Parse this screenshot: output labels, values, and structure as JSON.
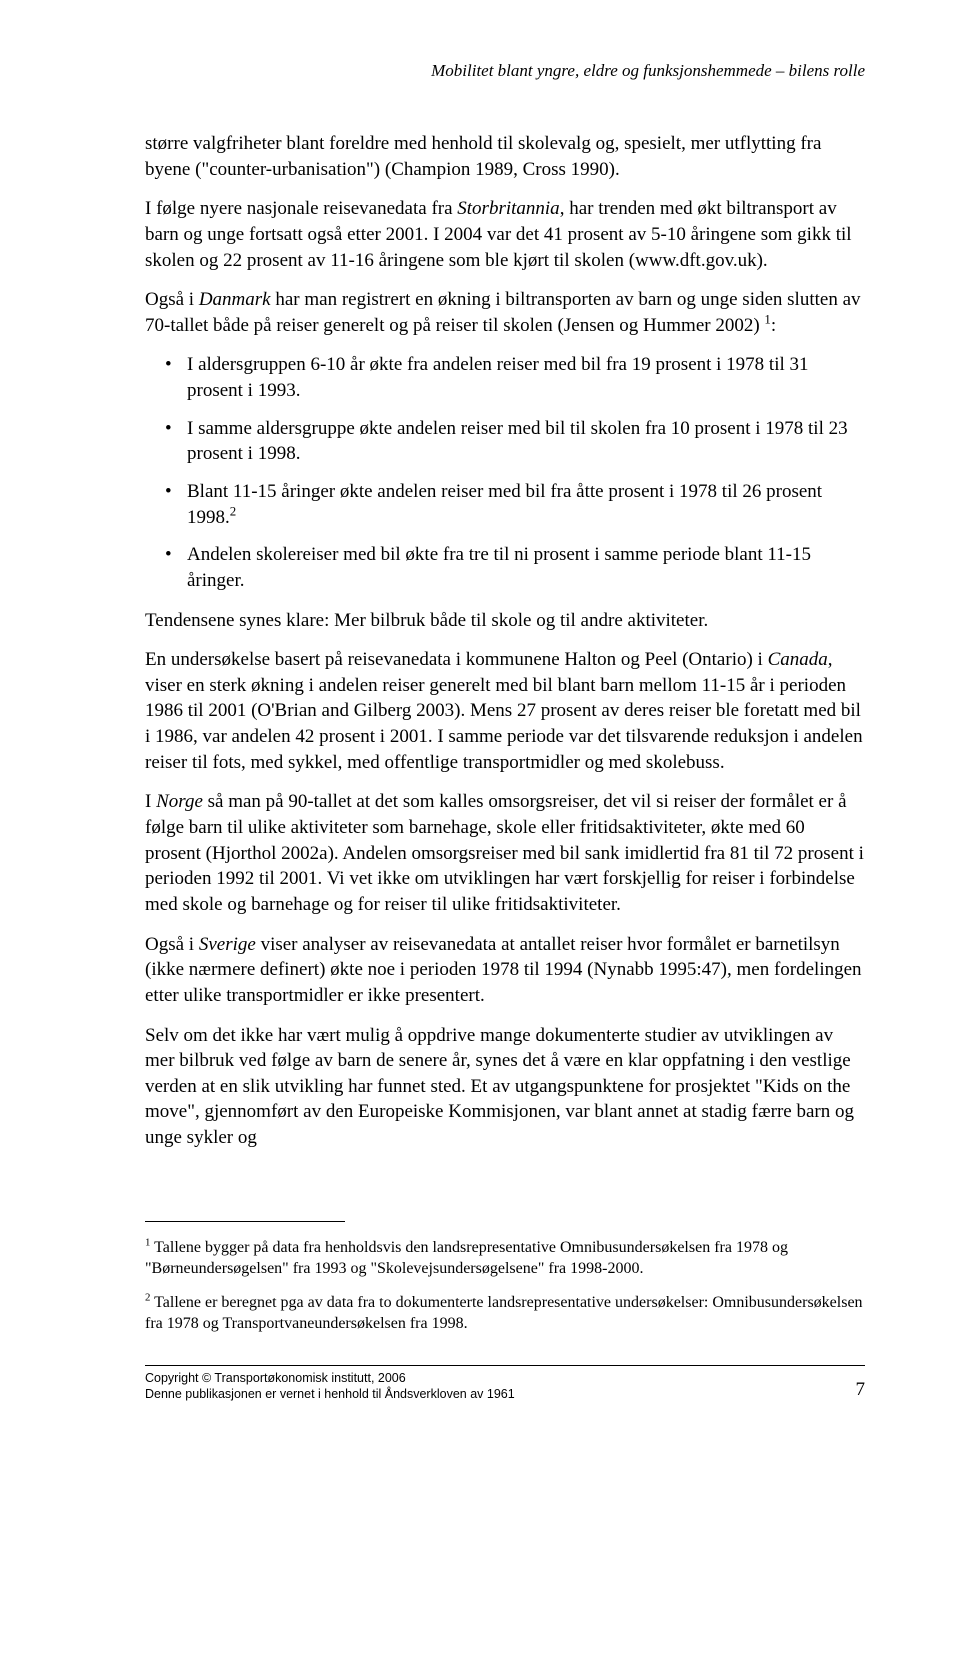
{
  "running_header": "Mobilitet blant yngre, eldre og funksjonshemmede – bilens rolle",
  "p1": "større valgfriheter blant foreldre med henhold til skolevalg og, spesielt, mer utflytting fra byene (\"counter-urbanisation\") (Champion 1989, Cross 1990).",
  "p2_a": "I følge nyere nasjonale reisevanedata fra ",
  "p2_i1": "Storbritannia",
  "p2_b": ", har trenden med økt biltransport av barn og unge fortsatt også etter 2001. I 2004 var det 41 prosent av 5-10 åringene som gikk til skolen og 22 prosent av 11-16 åringene som ble kjørt til skolen (www.dft.gov.uk).",
  "p3_a": "Også i ",
  "p3_i1": "Danmark",
  "p3_b": " har man registrert en økning i biltransporten av barn og unge siden slutten av 70-tallet både på reiser generelt og på reiser til skolen (Jensen og Hummer 2002)",
  "p3_sup": "1",
  "p3_c": ":",
  "bullets": {
    "b1": "I aldersgruppen 6-10 år økte fra andelen reiser med bil fra 19 prosent i 1978 til 31 prosent i 1993.",
    "b2": "I samme aldersgruppe økte andelen reiser med bil til skolen fra 10 prosent i 1978 til 23 prosent i 1998.",
    "b3_a": "Blant 11-15 åringer økte andelen reiser med bil fra åtte prosent i 1978 til 26 prosent 1998.",
    "b3_sup": "2",
    "b4": "Andelen skolereiser med bil økte fra tre til ni prosent i samme periode blant 11-15 åringer."
  },
  "p4": "Tendensene synes klare: Mer bilbruk både til skole og til andre aktiviteter.",
  "p5_a": "En undersøkelse basert på reisevanedata i kommunene Halton og Peel (Ontario) i ",
  "p5_i1": "Canada",
  "p5_b": ", viser en sterk økning i andelen reiser generelt med bil blant barn mellom 11-15 år i perioden 1986 til 2001 (O'Brian and Gilberg 2003). Mens 27 prosent av deres reiser ble foretatt med bil i 1986, var andelen 42 prosent i 2001. I samme periode var det tilsvarende reduksjon i andelen reiser til fots, med sykkel, med offentlige transportmidler og med skolebuss.",
  "p6_a": "I ",
  "p6_i1": "Norge",
  "p6_b": " så man på 90-tallet at det som kalles omsorgsreiser, det vil si reiser der formålet er å følge barn til ulike aktiviteter som barnehage, skole eller fritidsaktiviteter, økte med 60 prosent (Hjorthol 2002a). Andelen omsorgsreiser med bil sank imidlertid fra 81 til 72 prosent i perioden 1992 til 2001. Vi vet ikke om utviklingen har vært forskjellig for reiser i forbindelse med skole og barnehage og for reiser til ulike fritidsaktiviteter.",
  "p7_a": "Også i ",
  "p7_i1": "Sverige",
  "p7_b": " viser analyser av reisevanedata at antallet reiser hvor formålet er barnetilsyn (ikke nærmere definert) økte noe i perioden 1978 til 1994 (Nynabb 1995:47), men fordelingen etter ulike transportmidler er ikke presentert.",
  "p8": "Selv om det ikke har vært mulig å oppdrive mange dokumenterte studier av utviklingen av mer bilbruk ved følge av barn de senere år, synes det å være en klar oppfatning i den vestlige verden at en slik utvikling har funnet sted. Et av utgangspunktene for prosjektet \"Kids on the move\", gjennomført av den Europeiske Kommisjonen, var blant annet at stadig færre barn og unge sykler og",
  "fn1_sup": "1",
  "fn1": " Tallene bygger på data fra henholdsvis den landsrepresentative Omnibusundersøkelsen fra 1978 og \"Børneundersøgelsen\" fra 1993 og \"Skolevejsundersøgelsene\" fra 1998-2000.",
  "fn2_sup": "2",
  "fn2": " Tallene er beregnet pga av data fra to dokumenterte landsrepresentative undersøkelser: Omnibusundersøkelsen fra 1978 og Transportvaneundersøkelsen fra 1998.",
  "footer_l1": "Copyright © Transportøkonomisk institutt, 2006",
  "footer_l2": "Denne publikasjonen er vernet i henhold til Åndsverkloven av 1961",
  "page_number": "7"
}
